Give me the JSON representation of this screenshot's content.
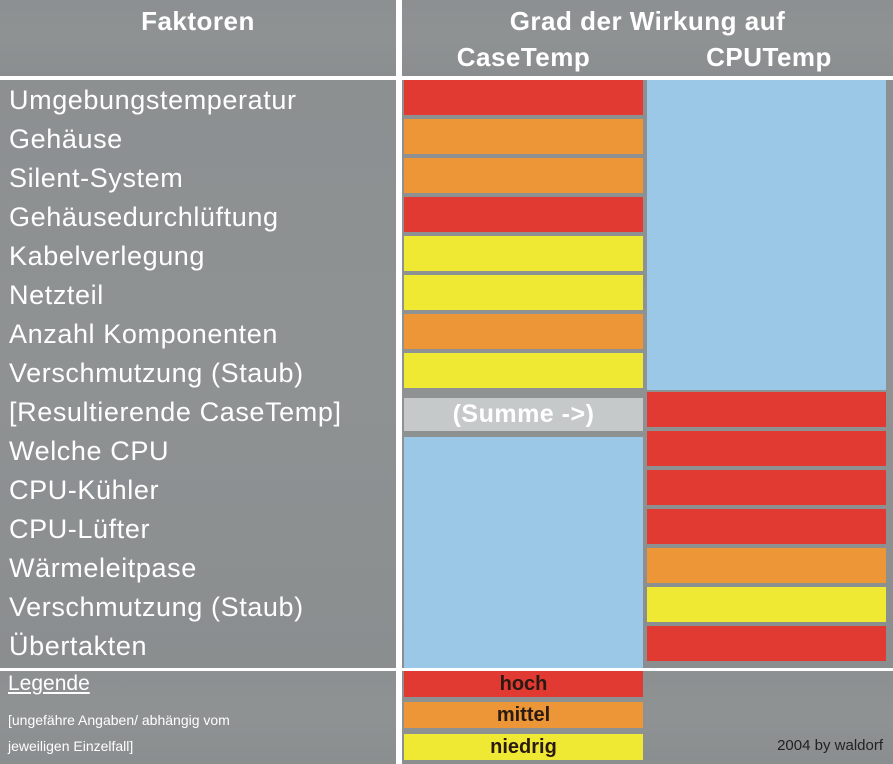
{
  "header": {
    "col1": "Faktoren",
    "col2_line1": "Grad der Wirkung auf",
    "col2_case": "CaseTemp",
    "col2_cpu": "CPUTemp"
  },
  "colors": {
    "hoch": "#e03a32",
    "mittel": "#ec9637",
    "niedrig": "#f0e934",
    "none": "#9cc8e8",
    "sum": "#c6c9ca"
  },
  "rows": [
    {
      "label": "Umgebungstemperatur",
      "case": "hoch",
      "cpu": "none"
    },
    {
      "label": "Gehäuse",
      "case": "mittel",
      "cpu": "none"
    },
    {
      "label": "Silent-System",
      "case": "mittel",
      "cpu": "none"
    },
    {
      "label": "Gehäusedurchlüftung",
      "case": "hoch",
      "cpu": "none"
    },
    {
      "label": "Kabelverlegung",
      "case": "niedrig",
      "cpu": "none"
    },
    {
      "label": "Netzteil",
      "case": "niedrig",
      "cpu": "none"
    },
    {
      "label": "Anzahl Komponenten",
      "case": "mittel",
      "cpu": "none"
    },
    {
      "label": "Verschmutzung (Staub)",
      "case": "niedrig",
      "cpu": "none"
    },
    {
      "label": "[Resultierende CaseTemp]",
      "case": "sum",
      "cpu": "hoch"
    },
    {
      "label": "Welche CPU",
      "case": "none",
      "cpu": "hoch"
    },
    {
      "label": "CPU-Kühler",
      "case": "none",
      "cpu": "hoch"
    },
    {
      "label": "CPU-Lüfter",
      "case": "none",
      "cpu": "hoch"
    },
    {
      "label": "Wärmeleitpase",
      "case": "none",
      "cpu": "mittel"
    },
    {
      "label": "Verschmutzung (Staub)",
      "case": "none",
      "cpu": "niedrig"
    },
    {
      "label": "Übertakten",
      "case": "none",
      "cpu": "hoch"
    }
  ],
  "sum_text": "(Summe ->)",
  "legend": {
    "title": "Legende",
    "note_line1": "[ungefähre Angaben/ abhängig vom",
    "note_line2": "jeweiligen Einzelfall]",
    "hoch": "hoch",
    "mittel": "mittel",
    "niedrig": "niedrig",
    "credit": "2004 by waldorf"
  }
}
